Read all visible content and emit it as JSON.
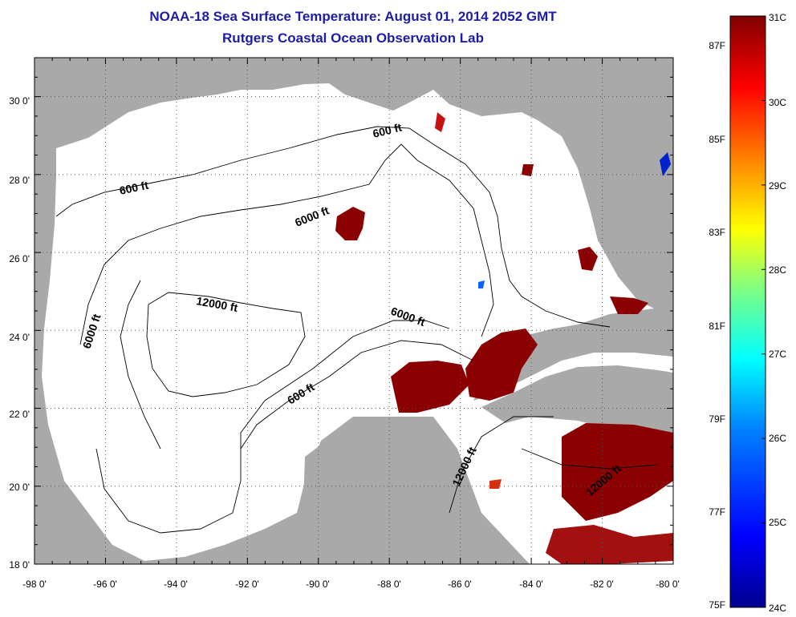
{
  "header": {
    "title": "NOAA-18 Sea Surface Temperature:  August 01, 2014 2052 GMT",
    "subtitle": "Rutgers Coastal Ocean Observation Lab"
  },
  "map": {
    "lon_range": [
      -98,
      -80
    ],
    "lat_range": [
      18,
      31
    ],
    "lon_ticks": [
      "-98 0'",
      "-96 0'",
      "-94 0'",
      "-92 0'",
      "-90 0'",
      "-88 0'",
      "-86 0'",
      "-84 0'",
      "-82 0'",
      "-80 0'"
    ],
    "lat_ticks": [
      "18 0'",
      "20 0'",
      "22 0'",
      "24 0'",
      "26 0'",
      "28 0'",
      "30 0'"
    ],
    "contour_labels": [
      "600 ft",
      "600 ft",
      "600 ft",
      "6000 ft",
      "6000 ft",
      "6000 ft",
      "12000 ft",
      "12000 ft",
      "12000 ft"
    ],
    "colors": {
      "land": "#a9a9a9",
      "water": "#ffffff",
      "warm_sst": "#8b0000"
    }
  },
  "colorbar": {
    "celsius_labels": [
      "31C",
      "30C",
      "29C",
      "28C",
      "27C",
      "26C",
      "25C",
      "24C"
    ],
    "fahrenheit_labels": [
      "87F",
      "85F",
      "83F",
      "81F",
      "79F",
      "77F",
      "75F"
    ],
    "range_c": [
      24,
      31
    ],
    "colormap": [
      "#00008f",
      "#0000ff",
      "#0080ff",
      "#00ffff",
      "#80ff80",
      "#ffff00",
      "#ff8000",
      "#ff0000",
      "#800000"
    ]
  }
}
